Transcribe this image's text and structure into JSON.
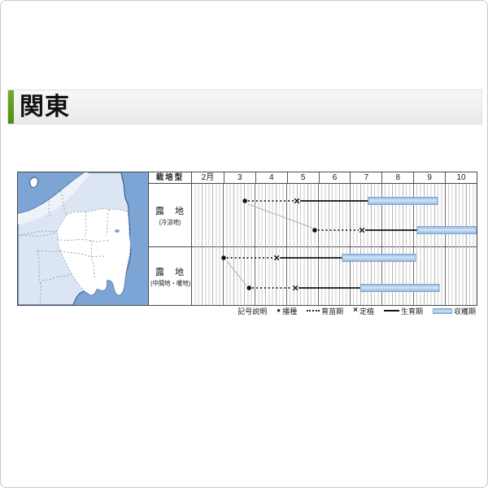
{
  "header": {
    "title": "関東"
  },
  "chart": {
    "type_column_header": "栽培型",
    "month_labels": [
      "2月",
      "3",
      "4",
      "5",
      "6",
      "7",
      "8",
      "9",
      "10"
    ],
    "rows": [
      {
        "label": "露　地",
        "sublabel": "(冷涼地)"
      },
      {
        "label": "露　地",
        "sublabel": "(中間地・暖地)"
      }
    ],
    "legend_title": "記号説明",
    "legend_items": [
      {
        "symbol": "sow-dot",
        "label": "播種"
      },
      {
        "symbol": "dotted-line",
        "label": "育苗期"
      },
      {
        "symbol": "transplant-x",
        "label": "定植"
      },
      {
        "symbol": "solid-line",
        "label": "生育期"
      },
      {
        "symbol": "harvest-bar",
        "label": "収穫期"
      }
    ]
  },
  "chart_data": {
    "type": "gantt",
    "title": "関東 栽培暦（露地栽培カレンダー）",
    "x_axis": {
      "label": "月",
      "start_month": 2,
      "end_month": 11,
      "tick_labels": [
        "2月",
        "3",
        "4",
        "5",
        "6",
        "7",
        "8",
        "9",
        "10"
      ],
      "subdivisions_per_month": 3
    },
    "legend": [
      "● 播種",
      "・・・ 育苗期",
      "× 定植",
      "── 生育期",
      "帯 収穫期"
    ],
    "rows": [
      {
        "cultivation_type": "露地(冷涼地)",
        "series": [
          {
            "sow_month": 3.67,
            "transplant_month": 5.31,
            "harvest_start_month": 7.56,
            "harvest_end_month": 9.74
          },
          {
            "sow_month": 5.87,
            "transplant_month": 7.36,
            "harvest_start_month": 9.1,
            "harvest_end_month": 10.97
          }
        ]
      },
      {
        "cultivation_type": "露地(中間地・暖地)",
        "series": [
          {
            "sow_month": 3.0,
            "transplant_month": 4.67,
            "harvest_start_month": 6.74,
            "harvest_end_month": 9.05
          },
          {
            "sow_month": 3.8,
            "transplant_month": 5.26,
            "harvest_start_month": 7.31,
            "harvest_end_month": 9.8
          }
        ]
      }
    ],
    "colors": {
      "harvest_bar": "#a6c8ea",
      "harvest_bar_border": "#7fa6d0",
      "sea": "#7ca5d5",
      "land": "#dbe5f4",
      "kanto_region": "#ffffff",
      "accent_green": "#68a824"
    },
    "grid": true,
    "legend_position": "bottom-right"
  }
}
